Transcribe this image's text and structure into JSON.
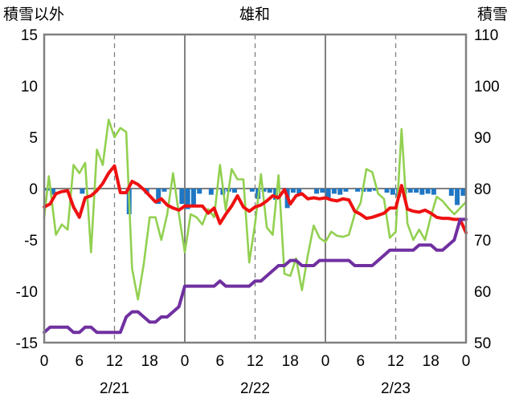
{
  "chart_data": {
    "type": "line",
    "title": "雄和",
    "left_axis_label": "積雪以外",
    "right_axis_label": "積雪",
    "left_ylim": [
      -15,
      15
    ],
    "right_ylim": [
      50,
      110
    ],
    "left_ticks": [
      "15",
      "10",
      "5",
      "0",
      "-5",
      "-10",
      "-15"
    ],
    "right_ticks": [
      "110",
      "100",
      "90",
      "80",
      "70",
      "60",
      "50"
    ],
    "x_hours": [
      0,
      72
    ],
    "x_tick_labels": [
      "0",
      "6",
      "12",
      "18",
      "0",
      "6",
      "12",
      "18",
      "0",
      "6",
      "12",
      "18",
      "0"
    ],
    "date_labels": [
      "2/21",
      "2/22",
      "2/23"
    ],
    "grid": {
      "solid_x": [
        0,
        24,
        48,
        72
      ],
      "dashed_x": [
        12,
        36,
        60
      ]
    },
    "colors": {
      "temperature": "#ee1111",
      "daily_range": "#92d050",
      "snow_depth": "#7030a0",
      "precipitation": "#1f77c4",
      "frame": "#808080",
      "grid": "#808080"
    },
    "series": [
      {
        "key": "temperature",
        "axis": "left",
        "x": [
          0,
          1,
          2,
          3,
          4,
          5,
          6,
          7,
          8,
          9,
          10,
          11,
          12,
          13,
          14,
          15,
          16,
          17,
          18,
          19,
          20,
          21,
          22,
          23,
          24,
          25,
          26,
          27,
          28,
          29,
          30,
          31,
          32,
          33,
          34,
          35,
          36,
          37,
          38,
          39,
          40,
          41,
          42,
          43,
          44,
          45,
          46,
          47,
          48,
          49,
          50,
          51,
          52,
          53,
          54,
          55,
          56,
          57,
          58,
          59,
          60,
          61,
          62,
          63,
          64,
          65,
          66,
          67,
          68,
          69,
          70,
          71,
          72
        ],
        "y": [
          -1.8,
          -1.5,
          -0.5,
          -0.3,
          -0.2,
          -1.8,
          -2.8,
          -0.9,
          -0.7,
          -0.2,
          0.5,
          1.5,
          2.2,
          -0.4,
          -0.4,
          0.7,
          0.4,
          -0.1,
          -0.7,
          -1.3,
          -1.0,
          -1.6,
          -1.9,
          -2.1,
          -1.7,
          -1.7,
          -1.7,
          -1.7,
          -2.4,
          -1.9,
          -3.4,
          -2.5,
          -1.7,
          -0.7,
          -1.8,
          -2.2,
          -1.8,
          -1.6,
          -1.2,
          -0.7,
          -0.9,
          -0.1,
          -1.5,
          -0.7,
          -0.5,
          -1.0,
          -0.9,
          -1.0,
          -0.9,
          -1.1,
          -1.2,
          -1.0,
          -1.1,
          -2.2,
          -2.5,
          -2.9,
          -2.8,
          -2.6,
          -2.4,
          -1.9,
          -1.9,
          0.3,
          -2.0,
          -2.2,
          -2.3,
          -2.1,
          -2.4,
          -2.8,
          -2.9,
          -2.9,
          -3.0,
          -3.0,
          -4.3
        ]
      },
      {
        "key": "daily_range",
        "axis": "left",
        "x": [
          0,
          0.8,
          2,
          3,
          4,
          5,
          6,
          7,
          8,
          9,
          10,
          11,
          12,
          13,
          14,
          15,
          16,
          17,
          18,
          19,
          20,
          21,
          22,
          23,
          24,
          25,
          26,
          27,
          28,
          29,
          30,
          31,
          32,
          33,
          34,
          35,
          36,
          37,
          38,
          39,
          40,
          41,
          42,
          43,
          44,
          45,
          46,
          47,
          48,
          49,
          50,
          51,
          52,
          53,
          54,
          55,
          56,
          57,
          58,
          59,
          60,
          61,
          62,
          63,
          64,
          65,
          66,
          67,
          68,
          69,
          70,
          71,
          72
        ],
        "y": [
          -2.8,
          1.2,
          -4.5,
          -3.5,
          -4.0,
          2.3,
          1.5,
          2.5,
          -6.2,
          3.8,
          2.3,
          6.7,
          5.0,
          5.9,
          5.5,
          -7.8,
          -10.8,
          -7.3,
          -2.8,
          -2.8,
          -5.0,
          -2.5,
          1.5,
          -2.5,
          -6.2,
          -2.5,
          -2.8,
          -3.5,
          -2.0,
          -2.8,
          2.3,
          -2.1,
          1.9,
          0.9,
          0.9,
          -7.2,
          -3.4,
          1.4,
          -3.8,
          -4.5,
          1.3,
          -8.3,
          -8.5,
          -6.8,
          -9.9,
          -6.5,
          -3.6,
          -4.8,
          -5.2,
          -4.2,
          -4.6,
          -4.7,
          -4.5,
          -2.5,
          -1.4,
          1.9,
          1.6,
          -0.5,
          -1.0,
          -4.8,
          -4.2,
          5.8,
          -3.4,
          -5.0,
          -4.0,
          -5.0,
          -2.7,
          -0.8,
          -1.2,
          -1.9,
          -2.5,
          -1.9,
          -1.3
        ]
      },
      {
        "key": "snow_depth",
        "axis": "right",
        "x": [
          0,
          1,
          2,
          3,
          4,
          5,
          6,
          7,
          8,
          9,
          10,
          11,
          12,
          13,
          14,
          15,
          16,
          17,
          18,
          19,
          20,
          21,
          22,
          23,
          24,
          25,
          26,
          27,
          28,
          29,
          30,
          31,
          32,
          33,
          34,
          35,
          36,
          37,
          38,
          39,
          40,
          41,
          42,
          43,
          44,
          45,
          46,
          47,
          48,
          49,
          50,
          51,
          52,
          53,
          54,
          55,
          56,
          57,
          58,
          59,
          60,
          61,
          62,
          63,
          64,
          65,
          66,
          67,
          68,
          69,
          70,
          71,
          72
        ],
        "y": [
          52,
          53,
          53,
          53,
          53,
          52,
          52,
          53,
          53,
          52,
          52,
          52,
          52,
          52,
          55,
          56,
          56,
          55,
          54,
          54,
          55,
          55,
          56,
          57,
          61,
          61,
          61,
          61,
          61,
          61,
          62,
          61,
          61,
          61,
          61,
          61,
          62,
          62,
          63,
          64,
          65,
          65,
          66,
          66,
          65,
          65,
          65,
          66,
          66,
          66,
          66,
          66,
          66,
          65,
          65,
          65,
          65,
          66,
          67,
          68,
          68,
          68,
          68,
          68,
          69,
          69,
          69,
          68,
          68,
          69,
          70,
          74,
          74
        ]
      }
    ],
    "precipitation": {
      "axis": "left",
      "x": [
        0,
        1,
        6,
        14,
        17,
        19,
        20,
        23,
        24,
        25,
        26,
        28,
        30,
        31,
        32,
        35,
        36,
        37,
        38,
        39,
        41,
        42,
        43,
        46,
        47,
        48,
        49,
        50,
        51,
        53,
        54,
        55,
        56,
        58,
        59,
        60,
        61,
        62,
        63,
        64,
        65,
        66,
        69,
        70,
        71
      ],
      "y": [
        -0.2,
        -0.6,
        -0.5,
        -2.5,
        -0.5,
        -1.5,
        -0.3,
        -1.5,
        -2.0,
        -1.6,
        -0.5,
        -0.6,
        -0.6,
        -0.3,
        -0.4,
        -0.3,
        -1.0,
        -0.3,
        -0.4,
        -1.1,
        -1.9,
        -0.4,
        -0.5,
        -0.5,
        -0.4,
        -0.9,
        -0.5,
        -0.6,
        -0.3,
        -0.3,
        -0.3,
        -0.3,
        -0.2,
        -0.4,
        -0.6,
        -0.8,
        -0.5,
        -0.4,
        -0.4,
        -0.6,
        -0.5,
        -0.6,
        -0.7,
        -1.6,
        -0.7
      ]
    }
  }
}
